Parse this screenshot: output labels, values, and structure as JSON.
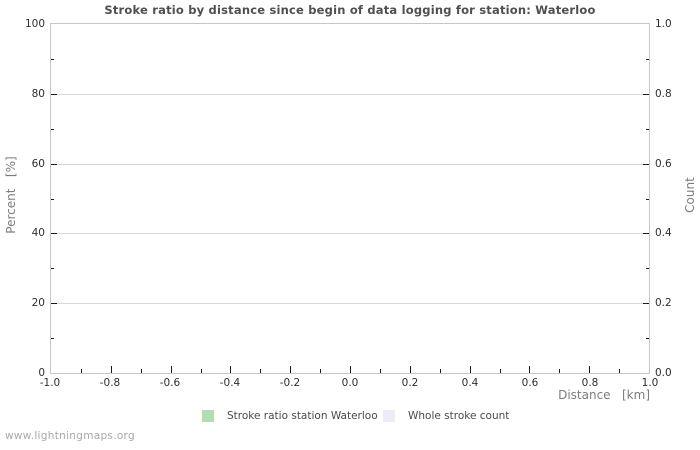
{
  "watermark": {
    "text": "www.lightningmaps.org"
  },
  "chart_data": {
    "type": "line",
    "title": "Stroke ratio by distance since begin of data logging for station: Waterloo",
    "xlabel": "Distance   [km]",
    "ylabel_left": "Percent   [%]",
    "ylabel_right": "Count",
    "xlim": [
      -1.0,
      1.0
    ],
    "ylim_left": [
      0,
      100
    ],
    "ylim_right": [
      0.0,
      1.0
    ],
    "x_tick_labels": [
      "-1.0",
      "-0.8",
      "-0.6",
      "-0.4",
      "-0.2",
      "0.0",
      "0.2",
      "0.4",
      "0.6",
      "0.8",
      "1.0"
    ],
    "y_left_tick_labels": [
      "0",
      "20",
      "40",
      "60",
      "80",
      "100"
    ],
    "y_right_tick_labels": [
      "0.0",
      "0.2",
      "0.4",
      "0.6",
      "0.8",
      "1.0"
    ],
    "grid": {
      "horizontal_major": true,
      "vertical": false
    },
    "legend": {
      "position": "bottom-center",
      "entries": [
        {
          "label": "Stroke ratio station Waterloo",
          "color": "#b2dcb2"
        },
        {
          "label": "Whole stroke count",
          "color": "#ececf8"
        }
      ]
    },
    "series": [
      {
        "name": "Stroke ratio station Waterloo",
        "color": "#b2dcb2",
        "points": []
      },
      {
        "name": "Whole stroke count",
        "color": "#ececf8",
        "points": []
      }
    ],
    "colors": {
      "title": "#4f4f4f",
      "axis_titles": "#7d7d7d",
      "tick_labels": "#2e2e2e",
      "tick_marks": "#1a1a1a",
      "grid": "#d8d8d8",
      "plot_border": "#c6c6c6",
      "background": "#ffffff",
      "watermark": "#a8a8a8"
    }
  }
}
